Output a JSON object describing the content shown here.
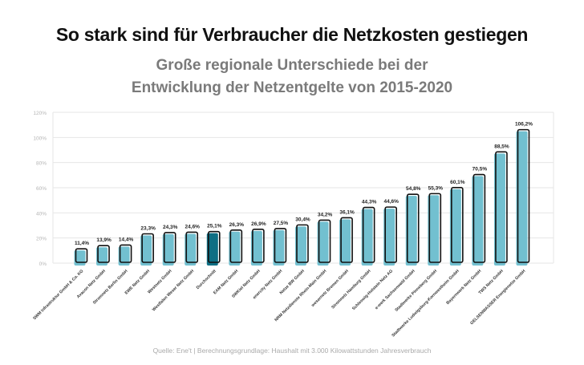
{
  "header": {
    "title": "So stark sind für Verbraucher die Netzkosten gestiegen",
    "subtitle_line1": "Große regionale Unterschiede bei der",
    "subtitle_line2": "Entwicklung der Netzentgelte von 2015-2020"
  },
  "footer": {
    "source": "Quelle: Ene't | Berechnungsgrundlage: Haushalt mit  3.000 Kilowattstunden Jahresverbrauch"
  },
  "chart_data": {
    "type": "bar",
    "title": "",
    "xlabel": "",
    "ylabel": "",
    "ylim": [
      0,
      120
    ],
    "yticks": [
      "0%",
      "20%",
      "40%",
      "60%",
      "80%",
      "100%",
      "120%"
    ],
    "grid": true,
    "categories": [
      "SWM Infrastruktur GmbH & Co. KG",
      "Avacon Netz GmbH",
      "Stromnetz Berlin GmbH",
      "EWE Netz GmbH",
      "Westnetz GmbH",
      "Westfalen Weser Netz GmbH",
      "Durchschnitt",
      "EAM Netz GmbH",
      "SWKiel Netz GmbH",
      "enercity Netz GmbH",
      "Netze BW GmbH",
      "NRM Netzdienste Rhein-Main GmbH",
      "wesernetz Bremen GmbH",
      "Stromnetz Hamburg GmbH",
      "Schleswig-Holstein Netz AG",
      "e-werk Sachsenwald GmbH",
      "Stadtwerke Pinneberg GmbH",
      "Stadtwerke Ludwigsburg-Kornwestheim GmbH",
      "Bayernwerk Netz GmbH",
      "TWS Netz GmbH",
      "GELSENWASSER Energienetze GmbH"
    ],
    "values": [
      11.4,
      13.9,
      14.4,
      23.3,
      24.3,
      24.6,
      25.1,
      26.3,
      26.9,
      27.5,
      30.4,
      34.2,
      36.1,
      44.3,
      44.6,
      54.8,
      55.3,
      60.1,
      70.5,
      88.5,
      106.2
    ],
    "data_labels": [
      "11,4%",
      "13,9%",
      "14,4%",
      "23,3%",
      "24,3%",
      "24,6%",
      "25,1%",
      "26,3%",
      "26,9%",
      "27,5%",
      "30,4%",
      "34,2%",
      "36,1%",
      "44,3%",
      "44,6%",
      "54,8%",
      "55,3%",
      "60,1%",
      "70,5%",
      "88,5%",
      "106,2%"
    ],
    "highlight_category": "Durchschnitt",
    "colors": {
      "bar": "#72c0d0",
      "highlight": "#0f6f84",
      "outline": "#111111",
      "grid": "#e6e6e6"
    }
  }
}
